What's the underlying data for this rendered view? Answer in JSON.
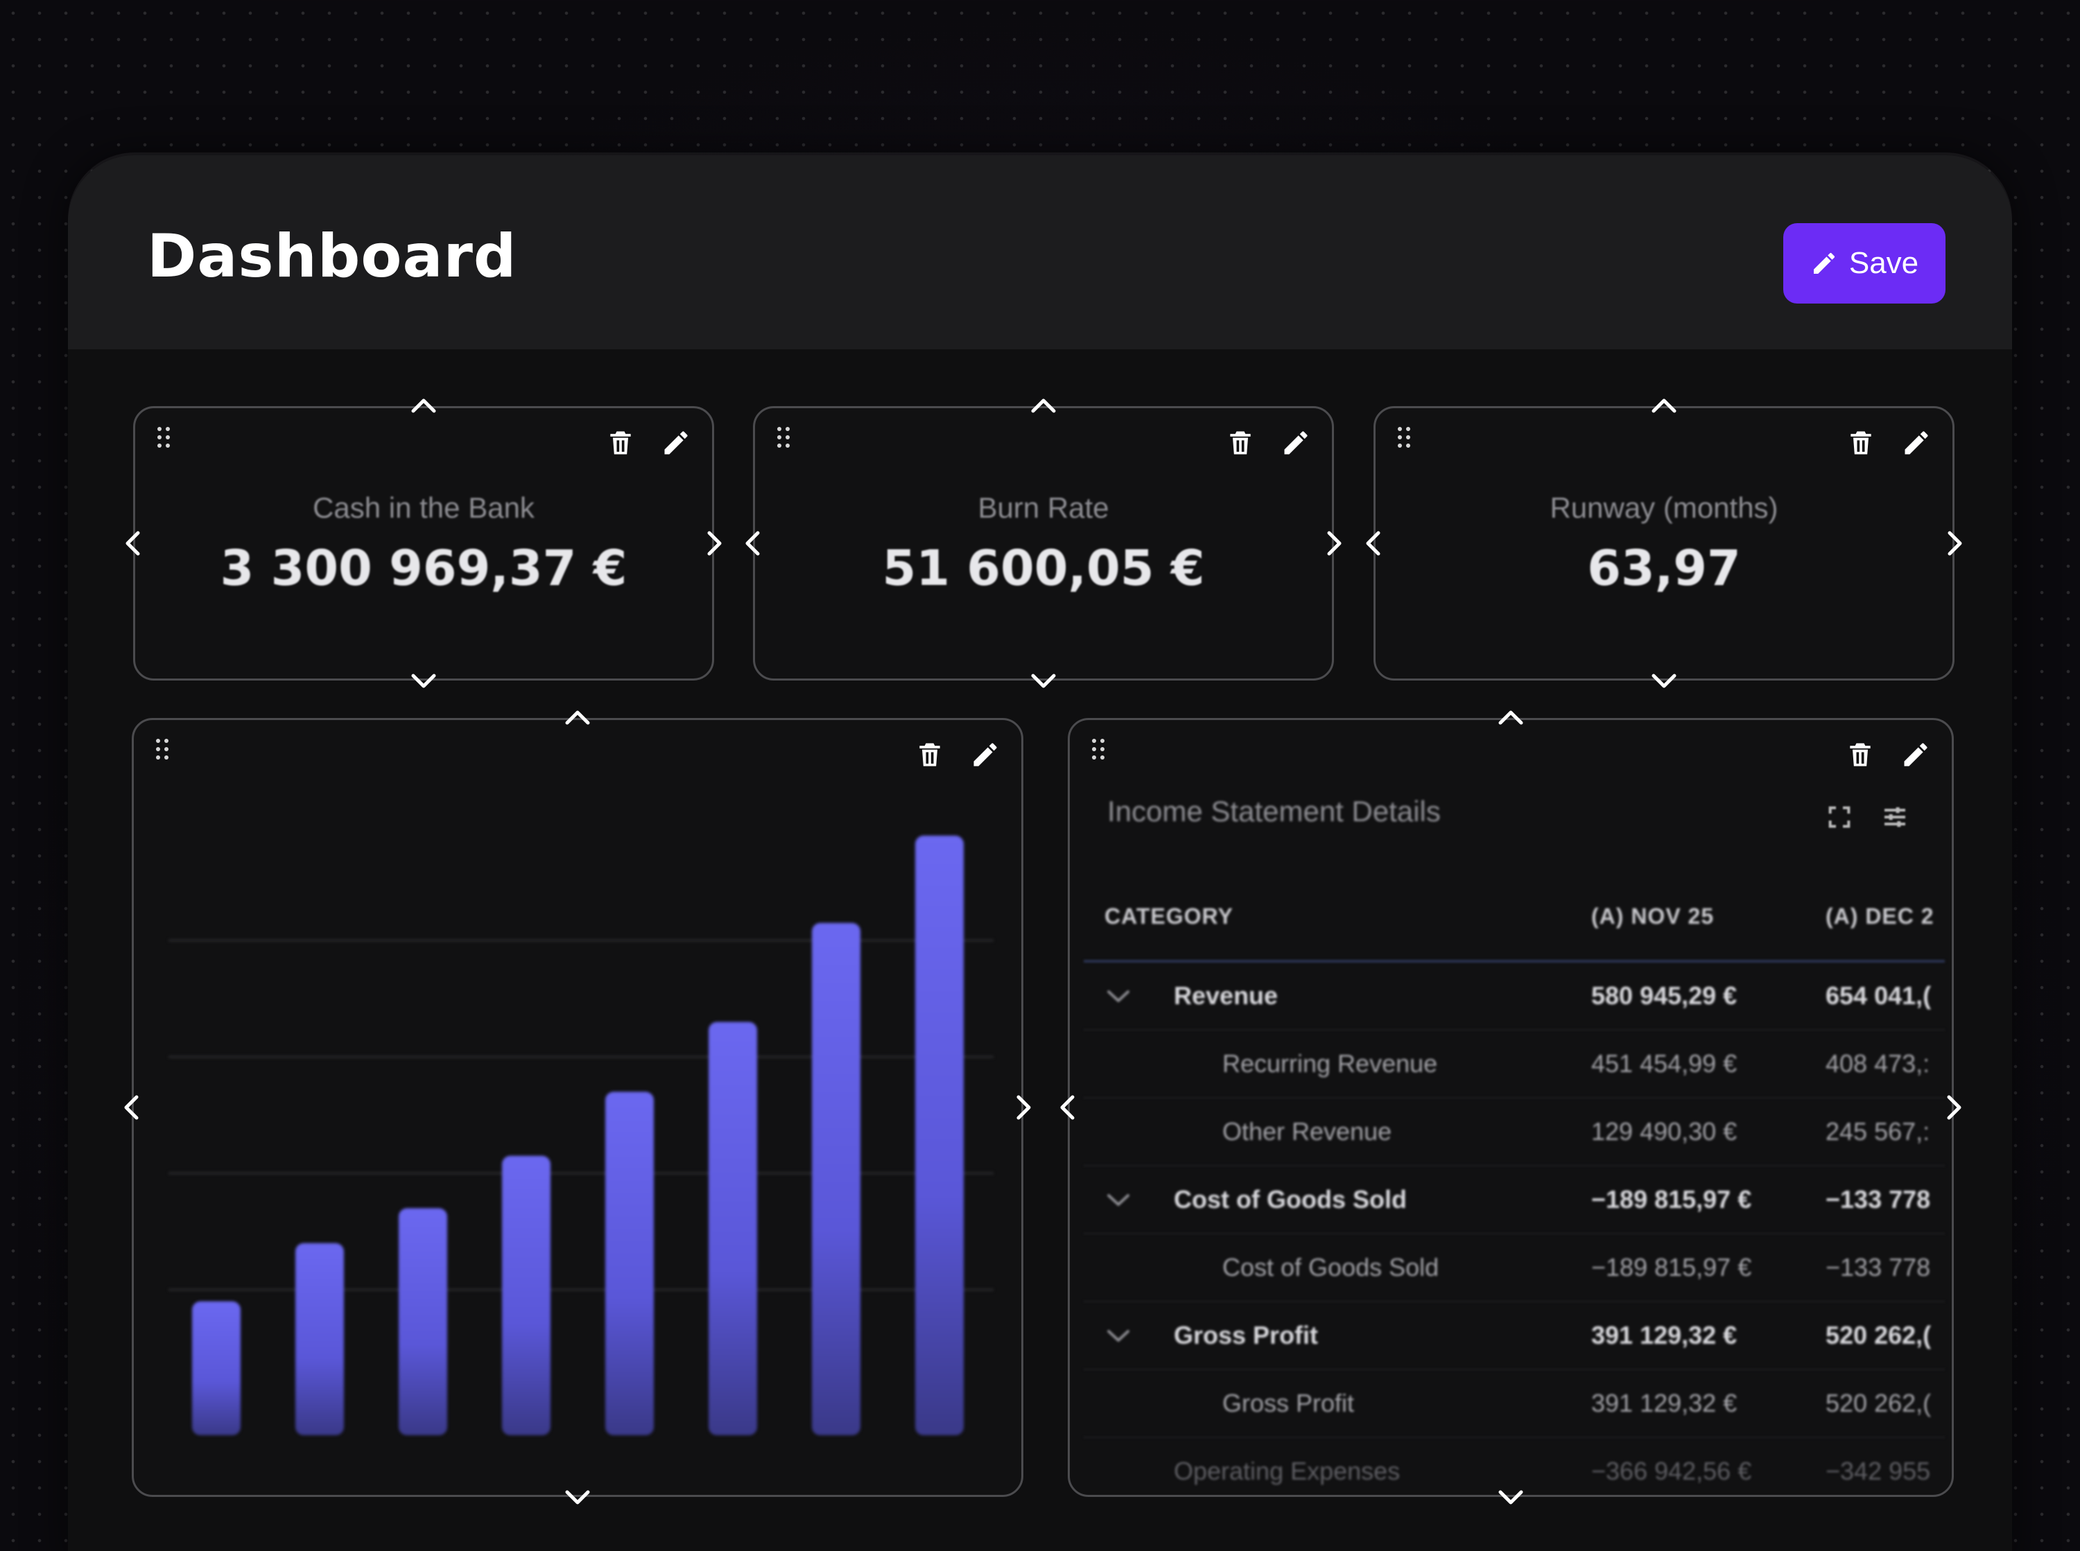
{
  "header": {
    "title": "Dashboard",
    "save_label": "Save"
  },
  "kpis": [
    {
      "label": "Cash in the Bank",
      "value": "3 300 969,37 €"
    },
    {
      "label": "Burn Rate",
      "value": "51 600,05 €"
    },
    {
      "label": "Runway (months)",
      "value": "63,97"
    }
  ],
  "chart_data": {
    "type": "bar",
    "categories": [
      "",
      "",
      "",
      "",
      "",
      "",
      "",
      ""
    ],
    "values": [
      23,
      33,
      39,
      48,
      59,
      71,
      88,
      103
    ],
    "ylim": [
      0,
      110
    ],
    "grid": true,
    "colors": {
      "bar_top": "#6b68f0",
      "bar_bottom": "#3b3a8a"
    }
  },
  "income_table": {
    "title": "Income Statement Details",
    "columns": [
      "CATEGORY",
      "(A) NOV 25",
      "(A) DEC 2"
    ],
    "rows": [
      {
        "type": "group",
        "category": "Revenue",
        "nov": "580 945,29 €",
        "dec": "654 041,("
      },
      {
        "type": "sub",
        "category": "Recurring Revenue",
        "nov": "451 454,99 €",
        "dec": "408 473,:"
      },
      {
        "type": "sub",
        "category": "Other Revenue",
        "nov": "129 490,30 €",
        "dec": "245 567,:"
      },
      {
        "type": "group",
        "category": "Cost of Goods Sold",
        "nov": "−189 815,97 €",
        "dec": "−133 778"
      },
      {
        "type": "sub",
        "category": "Cost of Goods Sold",
        "nov": "−189 815,97 €",
        "dec": "−133 778"
      },
      {
        "type": "group",
        "category": "Gross Profit",
        "nov": "391 129,32 €",
        "dec": "520 262,("
      },
      {
        "type": "sub",
        "category": "Gross Profit",
        "nov": "391 129,32 €",
        "dec": "520 262,("
      },
      {
        "type": "dim",
        "category": "Operating Expenses",
        "nov": "−366 942,56 €",
        "dec": "−342 955"
      }
    ]
  },
  "icons": {
    "drag": "drag-handle-icon",
    "delete": "trash-icon",
    "edit": "pencil-icon",
    "expand": "expand-icon",
    "settings": "sliders-icon"
  },
  "colors": {
    "accent": "#6c2cf5",
    "bar": "#6b68f0"
  }
}
